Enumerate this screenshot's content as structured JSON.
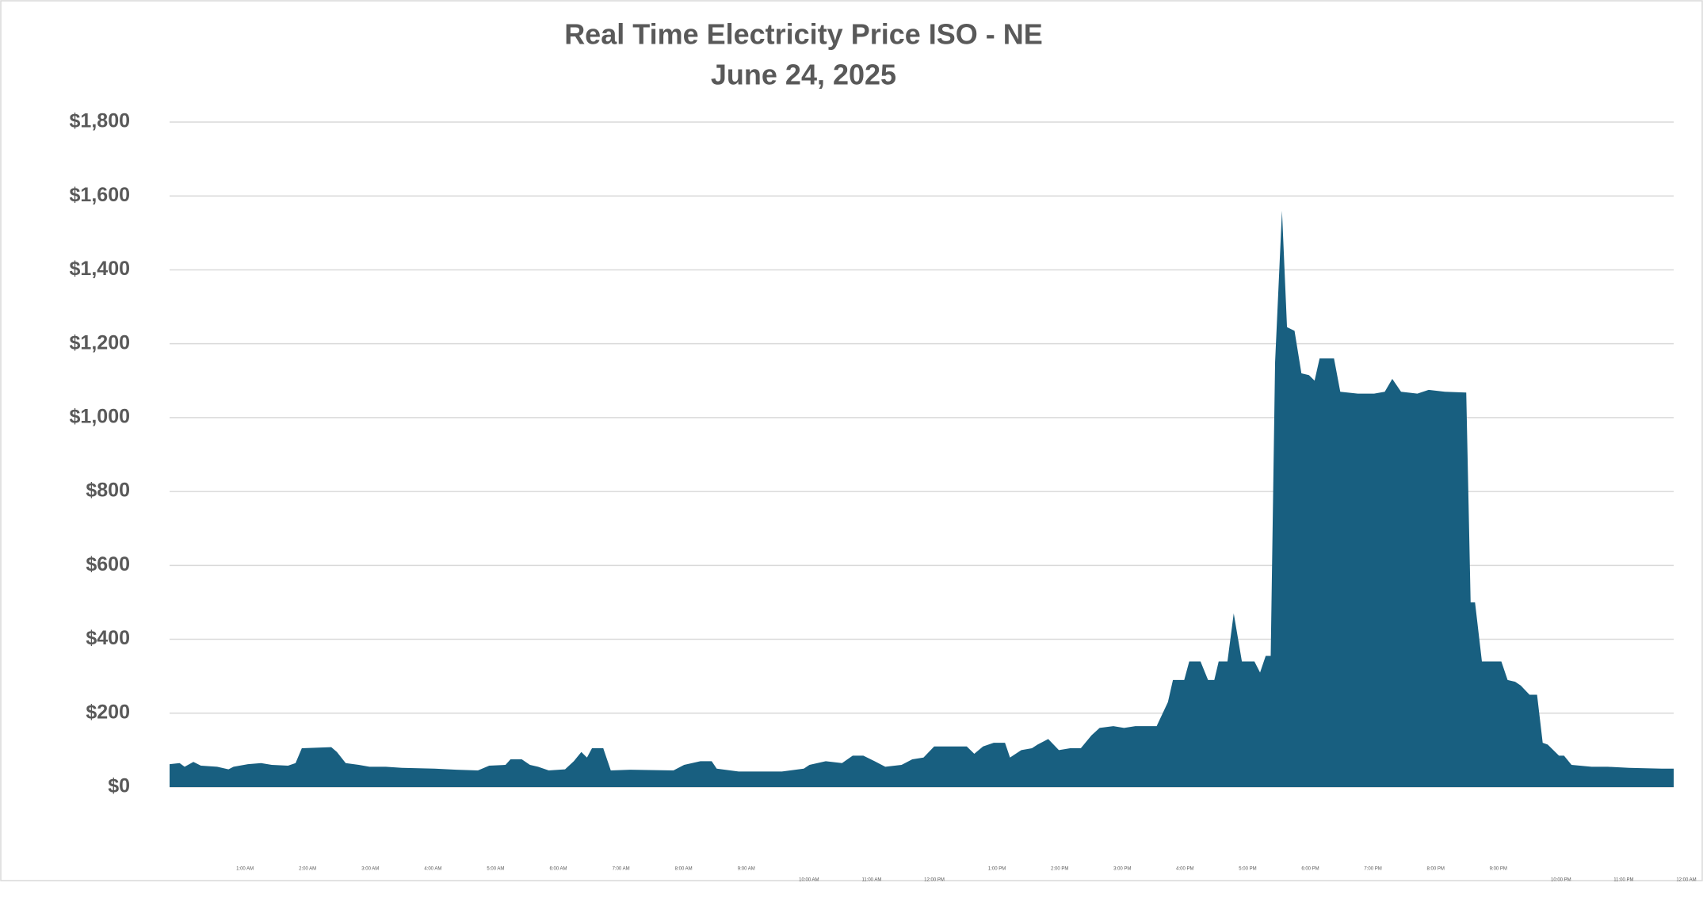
{
  "chart_data": {
    "type": "area",
    "title": "Real Time Electricity Price ISO - NE",
    "subtitle": "June 24, 2025",
    "color": "#185f80",
    "grid": true,
    "xlim": [
      0,
      24
    ],
    "ylim": [
      0,
      1800
    ],
    "yticks": [
      {
        "value": 0,
        "label": "$0"
      },
      {
        "value": 200,
        "label": "$200"
      },
      {
        "value": 400,
        "label": "$400"
      },
      {
        "value": 600,
        "label": "$600"
      },
      {
        "value": 800,
        "label": "$800"
      },
      {
        "value": 1000,
        "label": "$1,000"
      },
      {
        "value": 1200,
        "label": "$1,200"
      },
      {
        "value": 1400,
        "label": "$1,400"
      },
      {
        "value": 1600,
        "label": "$1,600"
      },
      {
        "value": 1800,
        "label": "$1,800"
      }
    ],
    "xticks": [
      {
        "value": 1,
        "label": "1:00 AM"
      },
      {
        "value": 2,
        "label": "2:00 AM"
      },
      {
        "value": 3,
        "label": "3:00 AM"
      },
      {
        "value": 4,
        "label": "4:00 AM"
      },
      {
        "value": 5,
        "label": "5:00 AM"
      },
      {
        "value": 6,
        "label": "6:00 AM"
      },
      {
        "value": 7,
        "label": "7:00 AM"
      },
      {
        "value": 8,
        "label": "8:00 AM"
      },
      {
        "value": 9,
        "label": "9:00 AM"
      },
      {
        "value": 10,
        "label": "10:00 AM"
      },
      {
        "value": 11,
        "label": "11:00 AM"
      },
      {
        "value": 12,
        "label": "12:00 PM"
      },
      {
        "value": 13,
        "label": "1:00 PM"
      },
      {
        "value": 14,
        "label": "2:00 PM"
      },
      {
        "value": 15,
        "label": "3:00 PM"
      },
      {
        "value": 16,
        "label": "4:00 PM"
      },
      {
        "value": 17,
        "label": "5:00 PM"
      },
      {
        "value": 18,
        "label": "6:00 PM"
      },
      {
        "value": 19,
        "label": "7:00 PM"
      },
      {
        "value": 20,
        "label": "8:00 PM"
      },
      {
        "value": 21,
        "label": "9:00 PM"
      },
      {
        "value": 22,
        "label": "10:00 PM"
      },
      {
        "value": 23,
        "label": "11:00 PM"
      },
      {
        "value": 24,
        "label": "12:00 AM"
      }
    ],
    "x": [
      0,
      0.16,
      0.24,
      0.38,
      0.5,
      0.76,
      0.94,
      1.02,
      1.25,
      1.46,
      1.63,
      1.89,
      2.01,
      2.11,
      2.58,
      2.67,
      2.81,
      3.02,
      3.19,
      3.45,
      3.71,
      4.23,
      4.58,
      4.92,
      5.1,
      5.36,
      5.44,
      5.62,
      5.75,
      5.88,
      6.05,
      6.31,
      6.45,
      6.57,
      6.66,
      6.74,
      6.92,
      7.04,
      7.35,
      8.04,
      8.21,
      8.47,
      8.65,
      8.73,
      9.08,
      9.77,
      10.12,
      10.21,
      10.47,
      10.73,
      10.9,
      11.07,
      11.25,
      11.42,
      11.68,
      11.85,
      12.03,
      12.2,
      12.46,
      12.72,
      12.84,
      12.98,
      13.15,
      13.33,
      13.41,
      13.59,
      13.76,
      13.85,
      14.02,
      14.19,
      14.37,
      14.54,
      14.71,
      14.84,
      15.06,
      15.23,
      15.41,
      15.75,
      15.93,
      16.01,
      16.19,
      16.27,
      16.45,
      16.57,
      16.67,
      16.74,
      16.88,
      16.98,
      17.11,
      17.31,
      17.4,
      17.49,
      17.57,
      17.64,
      17.75,
      17.83,
      17.95,
      18.06,
      18.18,
      18.27,
      18.35,
      18.58,
      18.68,
      18.96,
      19.22,
      19.39,
      19.51,
      19.65,
      19.91,
      20.09,
      20.35,
      20.69,
      20.76,
      20.83,
      20.94,
      21.25,
      21.35,
      21.47,
      21.56,
      21.7,
      21.82,
      21.91,
      21.99,
      22.17,
      22.25,
      22.37,
      22.69,
      22.95,
      23.29,
      23.81,
      24
    ],
    "values": [
      62,
      65,
      55,
      68,
      58,
      55,
      48,
      55,
      62,
      65,
      60,
      58,
      65,
      105,
      108,
      95,
      65,
      60,
      55,
      55,
      52,
      50,
      47,
      45,
      58,
      60,
      75,
      75,
      60,
      55,
      45,
      48,
      70,
      95,
      80,
      105,
      105,
      45,
      47,
      45,
      60,
      70,
      70,
      50,
      42,
      42,
      50,
      60,
      70,
      65,
      85,
      85,
      70,
      55,
      60,
      75,
      80,
      110,
      110,
      110,
      90,
      110,
      120,
      120,
      80,
      100,
      105,
      115,
      130,
      100,
      105,
      105,
      140,
      160,
      165,
      160,
      165,
      165,
      230,
      290,
      290,
      340,
      340,
      290,
      290,
      340,
      340,
      470,
      340,
      340,
      310,
      355,
      355,
      1150,
      1560,
      1245,
      1235,
      1120,
      1115,
      1100,
      1160,
      1160,
      1070,
      1065,
      1065,
      1070,
      1105,
      1070,
      1065,
      1075,
      1070,
      1068,
      500,
      500,
      340,
      340,
      290,
      285,
      275,
      250,
      250,
      120,
      115,
      85,
      85,
      60,
      55,
      55,
      52,
      50,
      50
    ]
  }
}
